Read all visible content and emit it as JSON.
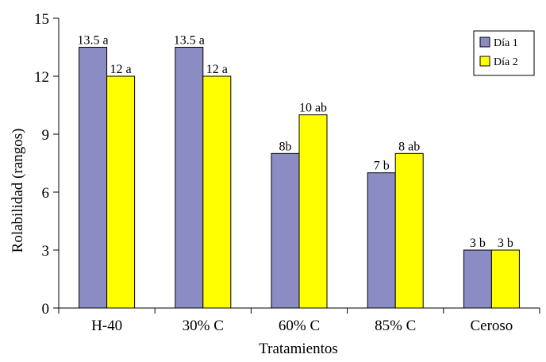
{
  "chart_data": {
    "type": "bar",
    "categories": [
      "H-40",
      "30% C",
      "60% C",
      "85% C",
      "Ceroso"
    ],
    "series": [
      {
        "name": "Día 1",
        "values": [
          13.5,
          13.5,
          8,
          7,
          3
        ],
        "labels": [
          "13.5 a",
          "13.5 a",
          "8b",
          "7 b",
          "3 b"
        ],
        "color": "#8c8cc4"
      },
      {
        "name": "Día 2",
        "values": [
          12,
          12,
          10,
          8,
          3
        ],
        "labels": [
          "12 a",
          "12 a",
          "10 ab",
          "8 ab",
          "3 b"
        ],
        "color": "#ffff00"
      }
    ],
    "xlabel": "Tratamientos",
    "ylabel": "Rolabilidad (rangos)",
    "ylim": [
      0,
      15
    ],
    "yticks": [
      0,
      3,
      6,
      9,
      12,
      15
    ],
    "grid": false,
    "legend_position": "top-right"
  }
}
